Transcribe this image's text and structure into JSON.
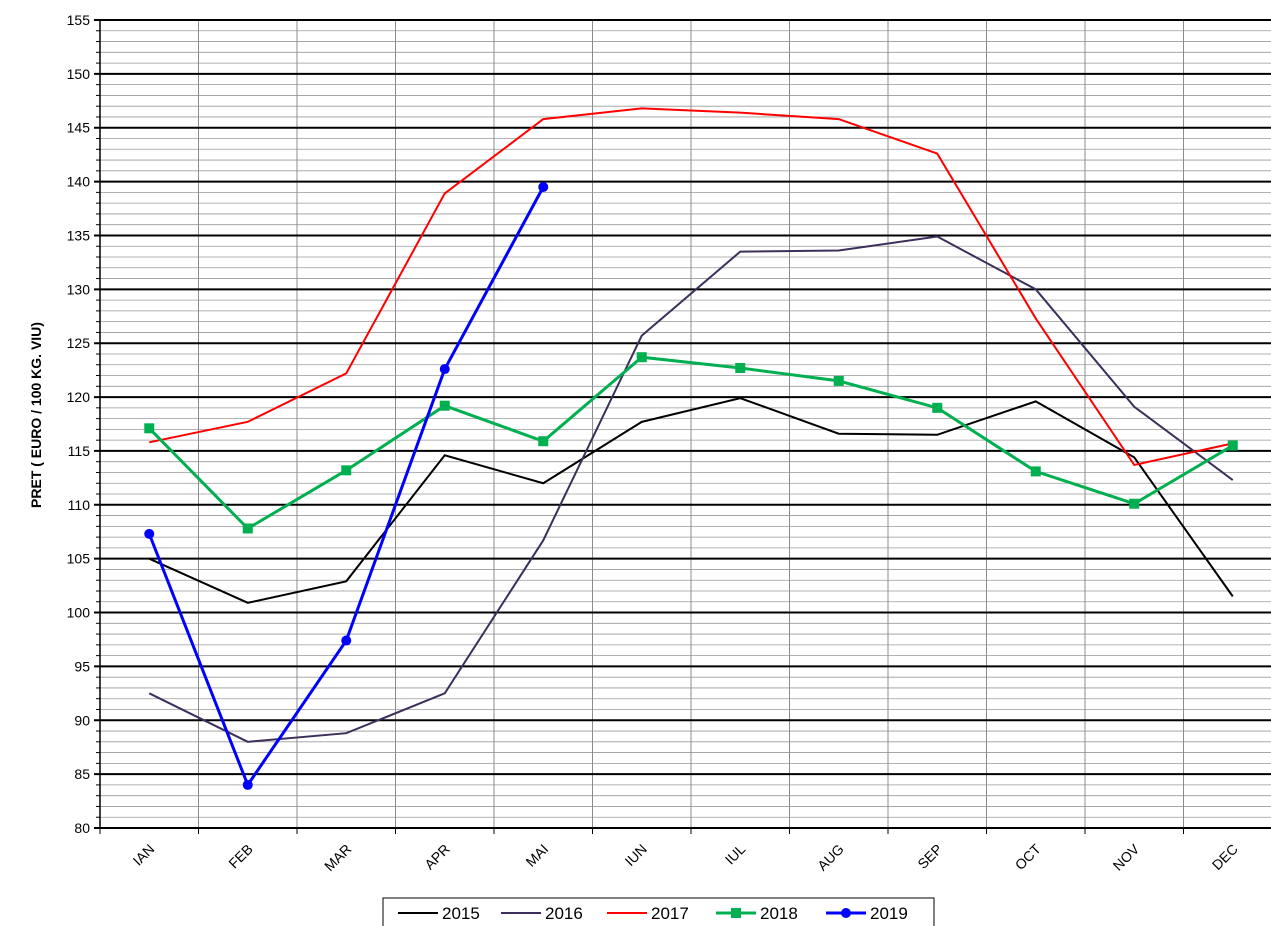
{
  "chart_data": {
    "type": "line",
    "title": "",
    "xlabel": "",
    "ylabel": "PRET ( EURO / 100 KG. VIU)",
    "ylim": [
      80,
      155
    ],
    "ytick_step": 5,
    "grid": true,
    "legend_position": "bottom",
    "categories": [
      "IAN",
      "FEB",
      "MAR",
      "APR",
      "MAI",
      "IUN",
      "IUL",
      "AUG",
      "SEP",
      "OCT",
      "NOV",
      "DEC"
    ],
    "series": [
      {
        "name": "2015",
        "color": "#000000",
        "marker": "none",
        "values": [
          105.0,
          100.9,
          102.9,
          114.6,
          112.0,
          117.7,
          119.9,
          116.6,
          116.5,
          119.6,
          114.4,
          101.5
        ]
      },
      {
        "name": "2016",
        "color": "#3d2f5b",
        "marker": "none",
        "values": [
          92.5,
          88.0,
          88.8,
          92.5,
          106.7,
          125.7,
          133.5,
          133.6,
          134.9,
          130.0,
          119.1,
          112.3
        ]
      },
      {
        "name": "2017",
        "color": "#ff0000",
        "marker": "none",
        "values": [
          115.8,
          117.7,
          122.2,
          138.9,
          145.8,
          146.8,
          146.4,
          145.8,
          142.6,
          127.3,
          113.7,
          115.7
        ]
      },
      {
        "name": "2018",
        "color": "#00b050",
        "marker": "square",
        "values": [
          117.1,
          107.8,
          113.2,
          119.2,
          115.9,
          123.7,
          122.7,
          121.5,
          119.0,
          113.1,
          110.1,
          115.5
        ]
      },
      {
        "name": "2019",
        "color": "#0000ff",
        "marker": "circle",
        "values": [
          107.3,
          84.0,
          97.4,
          122.6,
          139.5,
          null,
          null,
          null,
          null,
          null,
          null,
          null
        ]
      }
    ]
  }
}
